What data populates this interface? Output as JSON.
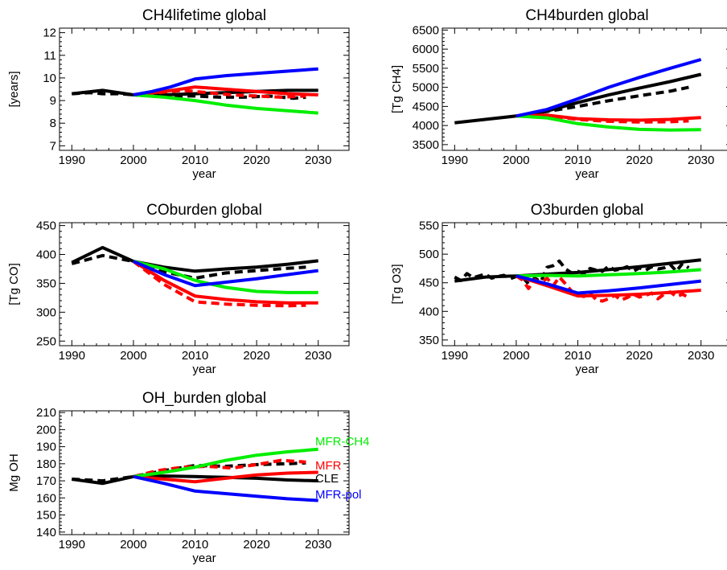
{
  "page_colors": {
    "background": "#ffffff",
    "axis": "#000000"
  },
  "series_styles": {
    "CLE": {
      "color": "#000000"
    },
    "MFR": {
      "color": "#ff0000"
    },
    "MFR-CH4": {
      "color": "#00ee00"
    },
    "MFR-pol": {
      "color": "#0000ff"
    }
  },
  "legend": [
    {
      "label": "MFR-CH4",
      "color": "#00ee00"
    },
    {
      "label": "MFR",
      "color": "#ff0000"
    },
    {
      "label": "CLE",
      "color": "#000000"
    },
    {
      "label": "MFR-pol",
      "color": "#0000ff"
    }
  ],
  "chart_data": [
    {
      "id": "ch4lifetime",
      "type": "line",
      "title": "CH4lifetime global",
      "xlabel": "year",
      "ylabel": "[years]",
      "xlim": [
        1988,
        2035
      ],
      "ylim": [
        6.8,
        12.2
      ],
      "xticks": [
        1990,
        2000,
        2010,
        2020,
        2030
      ],
      "yticks": [
        7,
        8,
        9,
        10,
        11,
        12
      ],
      "series": [
        {
          "key": "CLE",
          "style": "solid",
          "x": [
            1990,
            1995,
            2000,
            2005,
            2010,
            2015,
            2020,
            2025,
            2030
          ],
          "y": [
            9.3,
            9.45,
            9.25,
            9.25,
            9.3,
            9.35,
            9.4,
            9.45,
            9.45
          ]
        },
        {
          "key": "CLE",
          "style": "dashed",
          "x": [
            1990,
            1993,
            1995,
            1998,
            2000,
            2003,
            2006,
            2010,
            2014,
            2018,
            2022,
            2026,
            2028
          ],
          "y": [
            9.3,
            9.35,
            9.3,
            9.3,
            9.25,
            9.2,
            9.2,
            9.2,
            9.15,
            9.15,
            9.2,
            9.1,
            9.15
          ]
        },
        {
          "key": "MFR",
          "style": "solid",
          "x": [
            2000,
            2005,
            2010,
            2015,
            2020,
            2025,
            2030
          ],
          "y": [
            9.25,
            9.4,
            9.6,
            9.5,
            9.4,
            9.3,
            9.25
          ]
        },
        {
          "key": "MFR",
          "style": "dashed",
          "x": [
            2000,
            2004,
            2008,
            2012,
            2016,
            2020,
            2024,
            2028
          ],
          "y": [
            9.25,
            9.35,
            9.45,
            9.35,
            9.25,
            9.2,
            9.15,
            9.2
          ]
        },
        {
          "key": "MFR-CH4",
          "style": "solid",
          "x": [
            2000,
            2005,
            2010,
            2015,
            2020,
            2025,
            2030
          ],
          "y": [
            9.25,
            9.15,
            9.0,
            8.8,
            8.65,
            8.55,
            8.45
          ]
        },
        {
          "key": "MFR-pol",
          "style": "solid",
          "x": [
            2000,
            2003,
            2006,
            2010,
            2015,
            2020,
            2025,
            2030
          ],
          "y": [
            9.25,
            9.4,
            9.6,
            9.95,
            10.1,
            10.2,
            10.3,
            10.4
          ]
        }
      ]
    },
    {
      "id": "ch4burden",
      "type": "line",
      "title": "CH4burden global",
      "xlabel": "year",
      "ylabel": "[Tg CH4]",
      "xlim": [
        1988,
        2035
      ],
      "ylim": [
        3350,
        6550
      ],
      "xticks": [
        1990,
        2000,
        2010,
        2020,
        2030
      ],
      "yticks": [
        3500,
        4000,
        4500,
        5000,
        5500,
        6000,
        6500
      ],
      "series": [
        {
          "key": "CLE",
          "style": "solid",
          "x": [
            1990,
            1995,
            2000,
            2005,
            2010,
            2015,
            2020,
            2025,
            2030
          ],
          "y": [
            4070,
            4160,
            4250,
            4380,
            4600,
            4800,
            4980,
            5150,
            5340
          ]
        },
        {
          "key": "CLE",
          "style": "dashed",
          "x": [
            2000,
            2005,
            2010,
            2015,
            2020,
            2025,
            2028
          ],
          "y": [
            4250,
            4370,
            4500,
            4650,
            4780,
            4900,
            5000
          ]
        },
        {
          "key": "MFR",
          "style": "solid",
          "x": [
            2000,
            2005,
            2010,
            2015,
            2020,
            2025,
            2030
          ],
          "y": [
            4250,
            4270,
            4180,
            4150,
            4140,
            4160,
            4210
          ]
        },
        {
          "key": "MFR",
          "style": "dashed",
          "x": [
            2000,
            2005,
            2010,
            2015,
            2020,
            2025,
            2028
          ],
          "y": [
            4250,
            4260,
            4160,
            4110,
            4090,
            4100,
            4120
          ]
        },
        {
          "key": "MFR-CH4",
          "style": "solid",
          "x": [
            2000,
            2005,
            2010,
            2015,
            2020,
            2025,
            2030
          ],
          "y": [
            4250,
            4200,
            4050,
            3960,
            3900,
            3880,
            3890
          ]
        },
        {
          "key": "MFR-pol",
          "style": "solid",
          "x": [
            2000,
            2005,
            2010,
            2015,
            2020,
            2025,
            2030
          ],
          "y": [
            4250,
            4420,
            4700,
            5000,
            5260,
            5500,
            5730
          ]
        }
      ]
    },
    {
      "id": "coburden",
      "type": "line",
      "title": "COburden global",
      "xlabel": "year",
      "ylabel": "[Tg CO]",
      "xlim": [
        1988,
        2035
      ],
      "ylim": [
        242,
        455
      ],
      "xticks": [
        1990,
        2000,
        2010,
        2020,
        2030
      ],
      "yticks": [
        250,
        300,
        350,
        400,
        450
      ],
      "series": [
        {
          "key": "CLE",
          "style": "solid",
          "x": [
            1990,
            1995,
            2000,
            2005,
            2010,
            2015,
            2020,
            2025,
            2030
          ],
          "y": [
            386,
            412,
            388,
            378,
            371,
            375,
            378,
            383,
            389
          ]
        },
        {
          "key": "CLE",
          "style": "dashed",
          "x": [
            1990,
            1995,
            2000,
            2005,
            2010,
            2015,
            2020,
            2025,
            2028
          ],
          "y": [
            384,
            398,
            388,
            370,
            359,
            368,
            372,
            376,
            378
          ]
        },
        {
          "key": "MFR",
          "style": "solid",
          "x": [
            2000,
            2005,
            2010,
            2015,
            2020,
            2025,
            2030
          ],
          "y": [
            388,
            355,
            328,
            322,
            318,
            316,
            316
          ]
        },
        {
          "key": "MFR",
          "style": "dashed",
          "x": [
            2000,
            2005,
            2010,
            2015,
            2020,
            2025,
            2028
          ],
          "y": [
            388,
            348,
            318,
            314,
            312,
            311,
            312
          ]
        },
        {
          "key": "MFR-CH4",
          "style": "solid",
          "x": [
            2000,
            2005,
            2010,
            2015,
            2020,
            2025,
            2030
          ],
          "y": [
            388,
            375,
            355,
            343,
            336,
            334,
            334
          ]
        },
        {
          "key": "MFR-pol",
          "style": "solid",
          "x": [
            2000,
            2005,
            2010,
            2015,
            2020,
            2025,
            2030
          ],
          "y": [
            388,
            365,
            346,
            352,
            358,
            365,
            372
          ]
        }
      ]
    },
    {
      "id": "o3burden",
      "type": "line",
      "title": "O3burden global",
      "xlabel": "year",
      "ylabel": "[Tg O3]",
      "xlim": [
        1988,
        2035
      ],
      "ylim": [
        340,
        555
      ],
      "xticks": [
        1990,
        2000,
        2010,
        2020,
        2030
      ],
      "yticks": [
        350,
        400,
        450,
        500,
        550
      ],
      "series": [
        {
          "key": "CLE",
          "style": "solid",
          "x": [
            1990,
            1995,
            2000,
            2005,
            2010,
            2015,
            2020,
            2025,
            2030
          ],
          "y": [
            453,
            460,
            462,
            465,
            468,
            473,
            478,
            484,
            490
          ]
        },
        {
          "key": "CLE",
          "style": "dashed",
          "x": [
            1990,
            1991,
            1992,
            1993,
            1994,
            1995,
            1996,
            1997,
            1998,
            1999,
            2000,
            2001,
            2002,
            2003,
            2004,
            2005,
            2006,
            2007,
            2008,
            2009,
            2010,
            2011,
            2012,
            2013,
            2014,
            2015,
            2016,
            2017,
            2018,
            2019,
            2020,
            2021,
            2022,
            2023,
            2024,
            2025,
            2026,
            2027,
            2028
          ],
          "y": [
            460,
            454,
            466,
            459,
            462,
            465,
            458,
            461,
            463,
            457,
            461,
            460,
            448,
            458,
            452,
            477,
            480,
            488,
            474,
            467,
            470,
            466,
            475,
            472,
            470,
            479,
            472,
            474,
            478,
            470,
            476,
            472,
            478,
            474,
            476,
            482,
            470,
            484,
            476
          ]
        },
        {
          "key": "MFR",
          "style": "solid",
          "x": [
            2000,
            2005,
            2010,
            2015,
            2020,
            2025,
            2030
          ],
          "y": [
            462,
            445,
            427,
            428,
            430,
            433,
            437
          ]
        },
        {
          "key": "MFR",
          "style": "dashed",
          "x": [
            2000,
            2001,
            2002,
            2003,
            2004,
            2005,
            2006,
            2007,
            2008,
            2009,
            2010,
            2011,
            2012,
            2013,
            2014,
            2015,
            2016,
            2017,
            2018,
            2019,
            2020,
            2021,
            2022,
            2023,
            2024,
            2025,
            2026,
            2027,
            2028
          ],
          "y": [
            462,
            455,
            440,
            455,
            450,
            458,
            445,
            460,
            448,
            435,
            428,
            426,
            432,
            420,
            418,
            422,
            428,
            420,
            424,
            430,
            425,
            428,
            432,
            422,
            430,
            434,
            426,
            430,
            424
          ]
        },
        {
          "key": "MFR-CH4",
          "style": "solid",
          "x": [
            2000,
            2005,
            2010,
            2015,
            2020,
            2025,
            2030
          ],
          "y": [
            462,
            463,
            462,
            464,
            466,
            469,
            473
          ]
        },
        {
          "key": "MFR-pol",
          "style": "solid",
          "x": [
            2000,
            2005,
            2010,
            2015,
            2020,
            2025,
            2030
          ],
          "y": [
            462,
            448,
            432,
            436,
            441,
            447,
            453
          ]
        }
      ]
    },
    {
      "id": "ohburden",
      "type": "line",
      "title": "OH_burden global",
      "xlabel": "year",
      "ylabel": "Mg OH",
      "xlim": [
        1988,
        2035
      ],
      "ylim": [
        138.5,
        211
      ],
      "xticks": [
        1990,
        2000,
        2010,
        2020,
        2030
      ],
      "yticks": [
        140,
        150,
        160,
        170,
        180,
        190,
        200,
        210
      ],
      "series": [
        {
          "key": "CLE",
          "style": "solid",
          "x": [
            1990,
            1995,
            2000,
            2005,
            2010,
            2015,
            2020,
            2025,
            2030
          ],
          "y": [
            171,
            168.5,
            172.5,
            172.8,
            172.5,
            172,
            171.5,
            170.5,
            170
          ]
        },
        {
          "key": "CLE",
          "style": "dashed",
          "x": [
            1990,
            1995,
            2000,
            2005,
            2010,
            2015,
            2020,
            2025,
            2028
          ],
          "y": [
            171,
            170,
            172.5,
            176,
            179,
            178.5,
            179.5,
            180,
            180.5
          ]
        },
        {
          "key": "MFR",
          "style": "solid",
          "x": [
            2000,
            2005,
            2010,
            2015,
            2020,
            2025,
            2030
          ],
          "y": [
            172.5,
            171,
            169.5,
            171.5,
            173.5,
            174.5,
            175
          ]
        },
        {
          "key": "MFR",
          "style": "dashed",
          "x": [
            2000,
            2004,
            2008,
            2012,
            2016,
            2020,
            2024,
            2028
          ],
          "y": [
            172.5,
            176,
            178,
            178.5,
            177.5,
            179.5,
            182,
            181
          ]
        },
        {
          "key": "MFR-CH4",
          "style": "solid",
          "x": [
            2000,
            2005,
            2010,
            2015,
            2020,
            2025,
            2030
          ],
          "y": [
            172.5,
            175,
            178,
            182,
            185,
            187,
            188.5
          ]
        },
        {
          "key": "MFR-pol",
          "style": "solid",
          "x": [
            2000,
            2005,
            2010,
            2015,
            2020,
            2025,
            2030
          ],
          "y": [
            172.5,
            168.5,
            164,
            162.5,
            161,
            159.5,
            158.5
          ]
        }
      ]
    }
  ]
}
